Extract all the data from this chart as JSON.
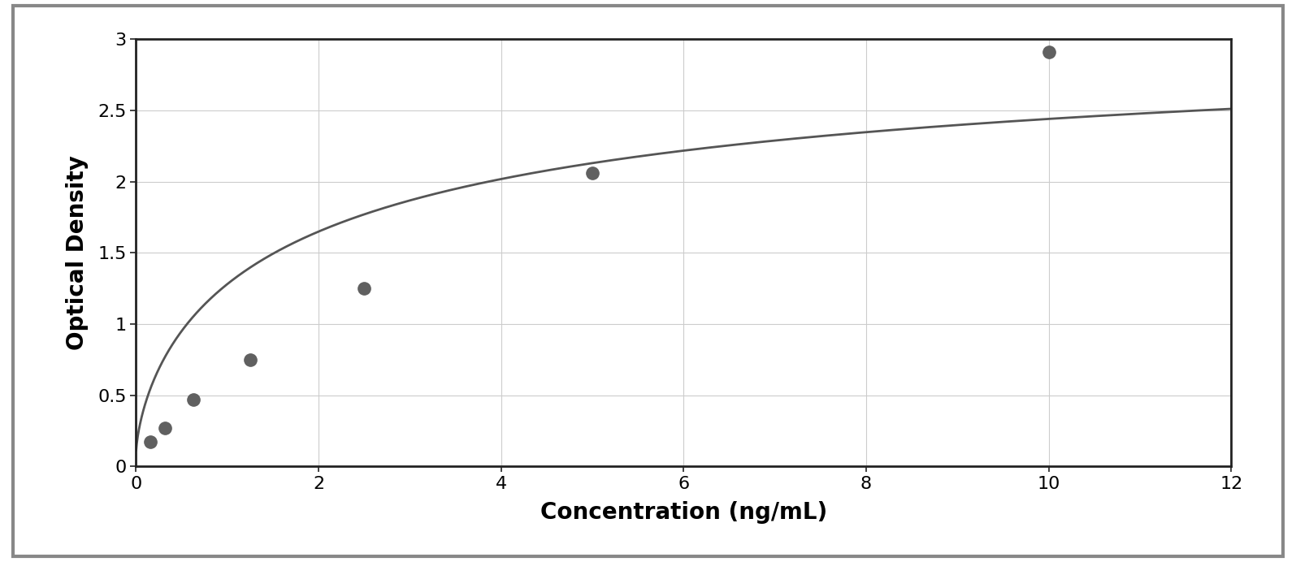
{
  "x_data": [
    0.156,
    0.313,
    0.625,
    1.25,
    2.5,
    5.0,
    10.0
  ],
  "y_data": [
    0.175,
    0.27,
    0.47,
    0.75,
    1.25,
    2.06,
    2.91
  ],
  "point_color": "#606060",
  "line_color": "#555555",
  "xlabel": "Concentration (ng/mL)",
  "ylabel": "Optical Density",
  "xlim": [
    0,
    12
  ],
  "ylim": [
    0,
    3
  ],
  "xticks": [
    0,
    2,
    4,
    6,
    8,
    10,
    12
  ],
  "yticks": [
    0,
    0.5,
    1.0,
    1.5,
    2.0,
    2.5,
    3.0
  ],
  "xlabel_fontsize": 20,
  "ylabel_fontsize": 20,
  "tick_fontsize": 16,
  "marker_size": 11,
  "line_width": 2.0,
  "background_color": "#ffffff",
  "grid_color": "#cccccc",
  "spine_color": "#222222",
  "outer_frame_color": "#888888",
  "outer_frame_lw": 3.0
}
